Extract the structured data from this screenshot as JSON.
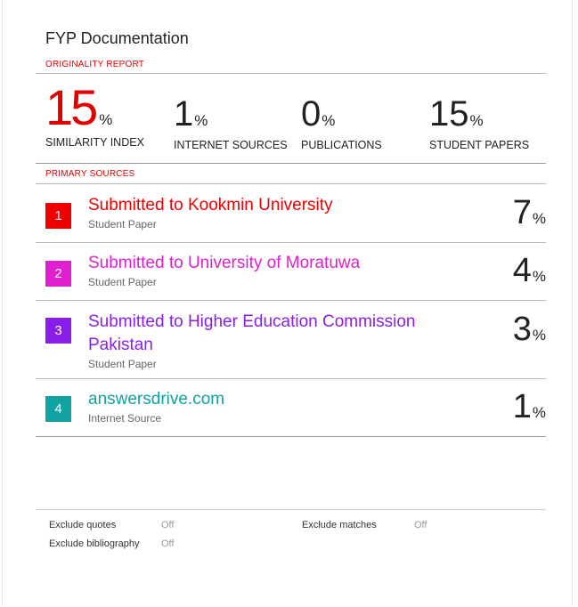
{
  "document": {
    "title": "FYP Documentation"
  },
  "originality": {
    "label": "ORIGINALITY REPORT",
    "similarity": {
      "value": "15",
      "unit": "%",
      "caption": "SIMILARITY INDEX"
    },
    "internet": {
      "value": "1",
      "unit": "%",
      "caption": "INTERNET SOURCES"
    },
    "publications": {
      "value": "0",
      "unit": "%",
      "caption": "PUBLICATIONS"
    },
    "student": {
      "value": "15",
      "unit": "%",
      "caption": "STUDENT PAPERS"
    }
  },
  "primary_sources": {
    "label": "PRIMARY SOURCES",
    "items": [
      {
        "rank": "1",
        "title": "Submitted to Kookmin University",
        "type": "Student Paper",
        "percent": "7",
        "unit": "%",
        "color": "#ee0000"
      },
      {
        "rank": "2",
        "title": "Submitted to University of Moratuwa",
        "type": "Student Paper",
        "percent": "4",
        "unit": "%",
        "color": "#e020d0"
      },
      {
        "rank": "3",
        "title_line1": "Submitted to Higher Education Commission",
        "title_line2": "Pakistan",
        "type": "Student Paper",
        "percent": "3",
        "unit": "%",
        "color": "#8a1ee8"
      },
      {
        "rank": "4",
        "title": "answersdrive.com",
        "type": "Internet Source",
        "percent": "1",
        "unit": "%",
        "color": "#12a2a2"
      }
    ]
  },
  "footer": {
    "exclude_quotes": {
      "label": "Exclude quotes",
      "value": "Off"
    },
    "exclude_bibliography": {
      "label": "Exclude bibliography",
      "value": "Off"
    },
    "exclude_matches": {
      "label": "Exclude matches",
      "value": "Off"
    }
  }
}
